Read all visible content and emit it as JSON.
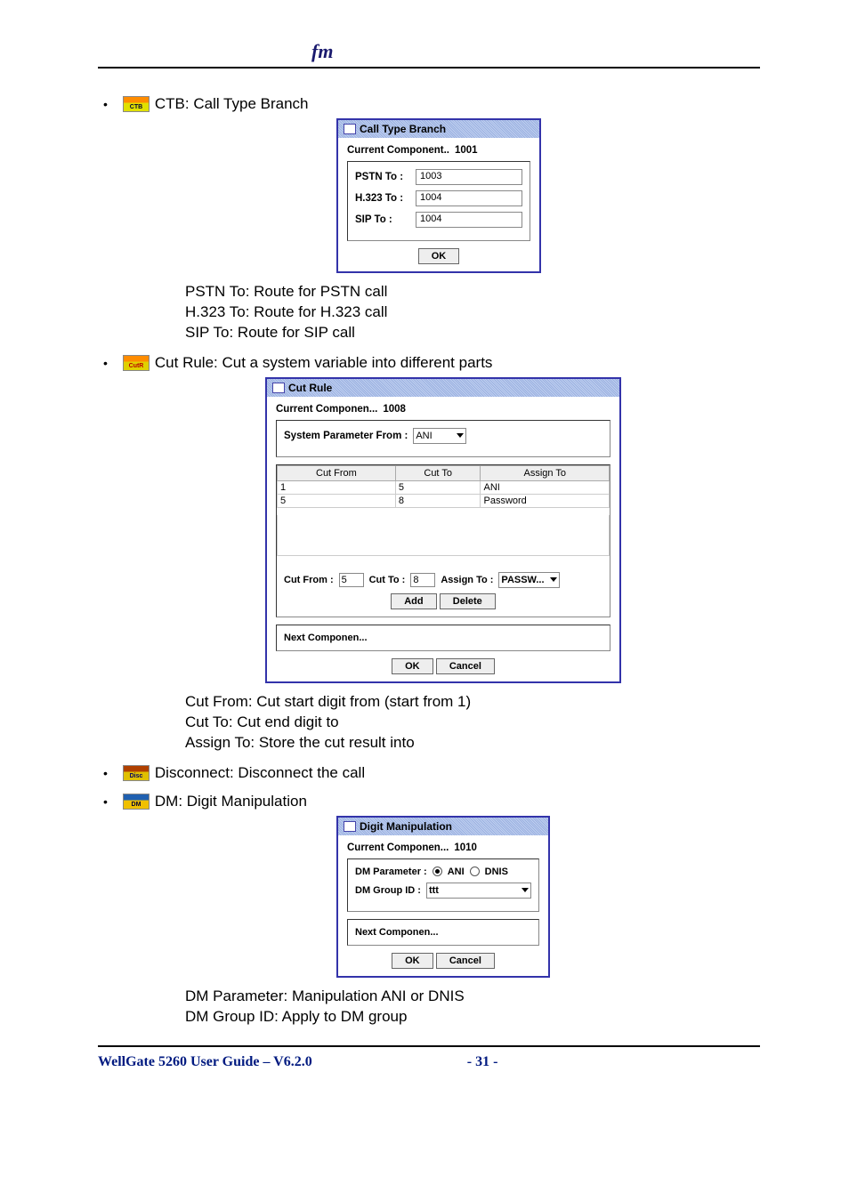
{
  "logo_text": "fm",
  "items": {
    "ctb": {
      "label": "CTB: Call Type Branch",
      "dialog_title": "Call Type Branch",
      "current_component_label": "Current Component..",
      "current_component_value": "1001",
      "pstn_label": "PSTN To :",
      "pstn_value": "1003",
      "h323_label": "H.323 To :",
      "h323_value": "1004",
      "sip_label": "SIP To :",
      "sip_value": "1004",
      "ok_label": "OK",
      "explain1": "PSTN To: Route for PSTN call",
      "explain2": "H.323 To: Route for H.323 call",
      "explain3": "SIP To: Route for SIP call"
    },
    "cut": {
      "label": "Cut Rule: Cut a system variable into different parts",
      "dialog_title": "Cut Rule",
      "current_component_label": "Current Componen...",
      "current_component_value": "1008",
      "sys_param_label": "System Parameter From :",
      "sys_param_value": "ANI",
      "th_cutfrom": "Cut From",
      "th_cutto": "Cut To",
      "th_assign": "Assign To",
      "rows": [
        {
          "from": "1",
          "to": "5",
          "assign": "ANI"
        },
        {
          "from": "5",
          "to": "8",
          "assign": "Password"
        }
      ],
      "edit_cutfrom_label": "Cut From :",
      "edit_cutfrom_value": "5",
      "edit_cutto_label": "Cut To :",
      "edit_cutto_value": "8",
      "edit_assign_label": "Assign To :",
      "edit_assign_value": "PASSW...",
      "add_label": "Add",
      "delete_label": "Delete",
      "next_label": "Next Componen...",
      "ok_label": "OK",
      "cancel_label": "Cancel",
      "explain1": "Cut From: Cut start digit from (start from 1)",
      "explain2": "Cut To: Cut end digit to",
      "explain3": "Assign To: Store the cut result into"
    },
    "disc": {
      "label": "Disconnect: Disconnect the call"
    },
    "dm": {
      "label": "DM: Digit Manipulation",
      "dialog_title": "Digit Manipulation",
      "current_component_label": "Current Componen...",
      "current_component_value": "1010",
      "dm_param_label": "DM Parameter :",
      "radio_ani": "ANI",
      "radio_dnis": "DNIS",
      "dm_group_label": "DM Group ID :",
      "dm_group_value": "ttt",
      "next_label": "Next Componen...",
      "ok_label": "OK",
      "cancel_label": "Cancel",
      "explain1": "DM Parameter: Manipulation ANI or DNIS",
      "explain2": "DM Group ID: Apply to DM group"
    }
  },
  "footer": {
    "title": "WellGate 5260 User Guide – V6.2.0",
    "page": "- 31 -"
  }
}
